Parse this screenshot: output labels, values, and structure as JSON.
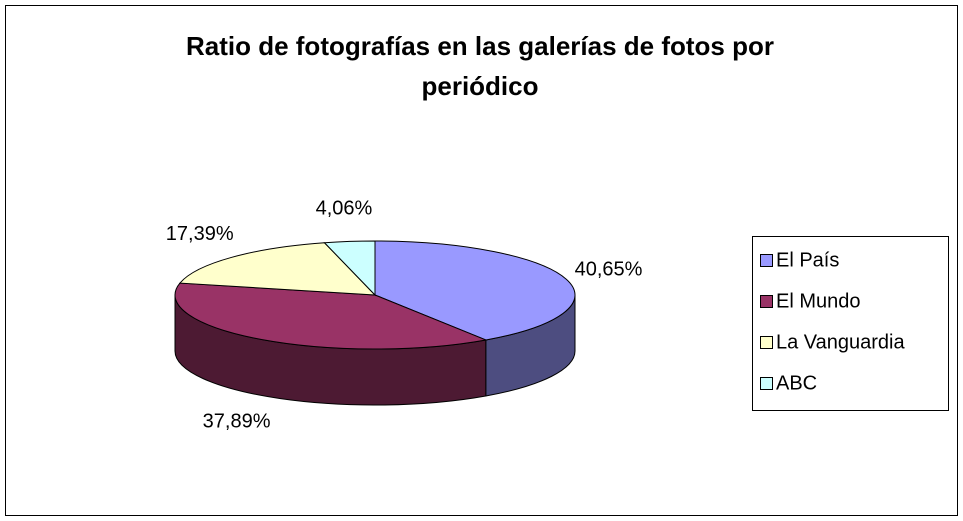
{
  "chart_data": {
    "type": "pie",
    "title": "Ratio de fotografías en las galerías de fotos por periódico",
    "categories": [
      "El País",
      "El Mundo",
      "La Vanguardia",
      "ABC"
    ],
    "values": [
      40.65,
      37.89,
      17.39,
      4.06
    ],
    "value_labels": [
      "40,65%",
      "37,89%",
      "17,39%",
      "4,06%"
    ],
    "colors": [
      "#9999ff",
      "#993366",
      "#ffffcc",
      "#ccffff"
    ],
    "legend": "right"
  }
}
